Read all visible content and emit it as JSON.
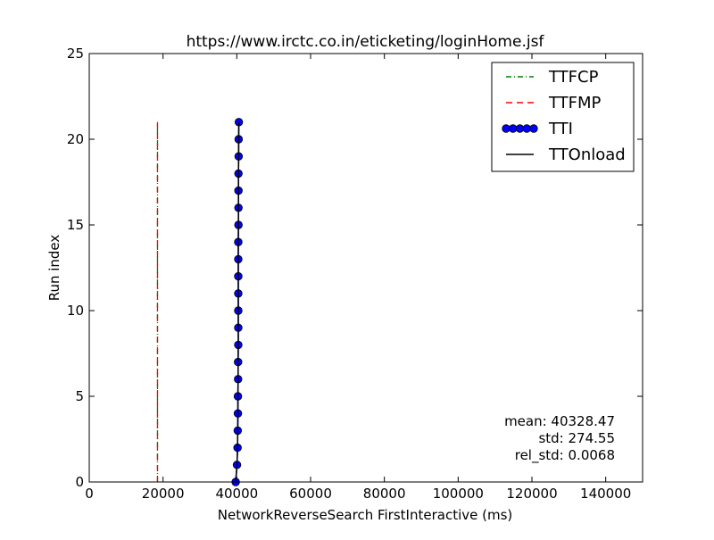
{
  "chart_data": {
    "type": "line",
    "title": "https://www.irctc.co.in/eticketing/loginHome.jsf",
    "xlabel": "NetworkReverseSearch FirstInteractive (ms)",
    "ylabel": "Run index",
    "xlim": [
      0,
      150000
    ],
    "ylim": [
      0,
      25
    ],
    "xticks": [
      0,
      20000,
      40000,
      60000,
      80000,
      100000,
      120000,
      140000
    ],
    "yticks": [
      0,
      5,
      10,
      15,
      20,
      25
    ],
    "grid": false,
    "legend_position": "top-right",
    "series": [
      {
        "name": "TTFCP",
        "color": "#008000",
        "style": "dash-dot",
        "x": [
          18500,
          18500,
          18500,
          18500,
          18500,
          18500,
          18500,
          18500,
          18500,
          18500,
          18500,
          18500,
          18500,
          18500,
          18500,
          18500,
          18500,
          18500,
          18500,
          18500,
          18500,
          18500
        ],
        "y": [
          0,
          1,
          2,
          3,
          4,
          5,
          6,
          7,
          8,
          9,
          10,
          11,
          12,
          13,
          14,
          15,
          16,
          17,
          18,
          19,
          20,
          21
        ]
      },
      {
        "name": "TTFMP",
        "color": "#ff0000",
        "style": "dashed",
        "x": [
          18500,
          18500,
          18500,
          18500,
          18500,
          18500,
          18500,
          18500,
          18500,
          18500,
          18500,
          18500,
          18500,
          18500,
          18500,
          18500,
          18500,
          18500,
          18500,
          18500,
          18500,
          18500
        ],
        "y": [
          0,
          1,
          2,
          3,
          4,
          5,
          6,
          7,
          8,
          9,
          10,
          11,
          12,
          13,
          14,
          15,
          16,
          17,
          18,
          19,
          20,
          21
        ]
      },
      {
        "name": "TTI",
        "color": "#0000ff",
        "style": "solid-markers",
        "x": [
          39700,
          40050,
          40200,
          40250,
          40300,
          40300,
          40350,
          40350,
          40400,
          40400,
          40400,
          40400,
          40400,
          40400,
          40400,
          40450,
          40450,
          40450,
          40450,
          40500,
          40500,
          40550
        ],
        "y": [
          0,
          1,
          2,
          3,
          4,
          5,
          6,
          7,
          8,
          9,
          10,
          11,
          12,
          13,
          14,
          15,
          16,
          17,
          18,
          19,
          20,
          21
        ]
      },
      {
        "name": "TTOnload",
        "color": "#000000",
        "style": "solid",
        "x": [
          39700,
          40050,
          40200,
          40250,
          40300,
          40300,
          40350,
          40350,
          40400,
          40400,
          40400,
          40400,
          40400,
          40400,
          40400,
          40450,
          40450,
          40450,
          40450,
          40500,
          40500,
          40550
        ],
        "y": [
          0,
          1,
          2,
          3,
          4,
          5,
          6,
          7,
          8,
          9,
          10,
          11,
          12,
          13,
          14,
          15,
          16,
          17,
          18,
          19,
          20,
          21
        ]
      }
    ],
    "annotations": {
      "mean": "mean: 40328.47",
      "std": "std: 274.55",
      "rel_std": "rel_std: 0.0068"
    }
  }
}
